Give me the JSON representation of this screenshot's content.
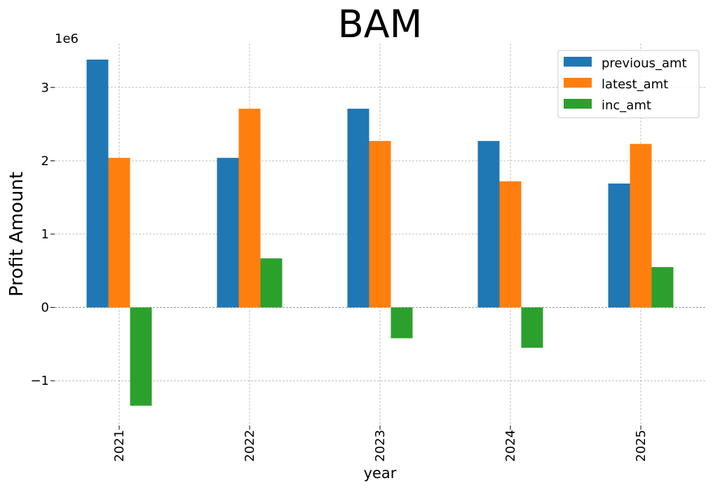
{
  "chart_data": {
    "type": "bar",
    "title": "BAM",
    "xlabel": "year",
    "ylabel": "Profit Amount",
    "y_offset_label": "1e6",
    "categories": [
      "2021",
      "2022",
      "2023",
      "2024",
      "2025"
    ],
    "series": [
      {
        "name": "previous_amt",
        "color": "#1f77b4",
        "values": [
          3380000,
          2040000,
          2710000,
          2270000,
          1690000
        ]
      },
      {
        "name": "latest_amt",
        "color": "#ff7f0e",
        "values": [
          2040000,
          2710000,
          2270000,
          1720000,
          2230000
        ]
      },
      {
        "name": "inc_amt",
        "color": "#2ca02c",
        "values": [
          -1340000,
          670000,
          -420000,
          -550000,
          550000
        ]
      }
    ],
    "yticks": [
      -1000000,
      0,
      1000000,
      2000000,
      3000000
    ],
    "ytick_labels": [
      "−1",
      "0",
      "1",
      "2",
      "3"
    ],
    "ylim": [
      -1610000,
      3600000
    ],
    "grid": true,
    "legend_position": "top-right",
    "xtick_rotation": "vertical"
  }
}
